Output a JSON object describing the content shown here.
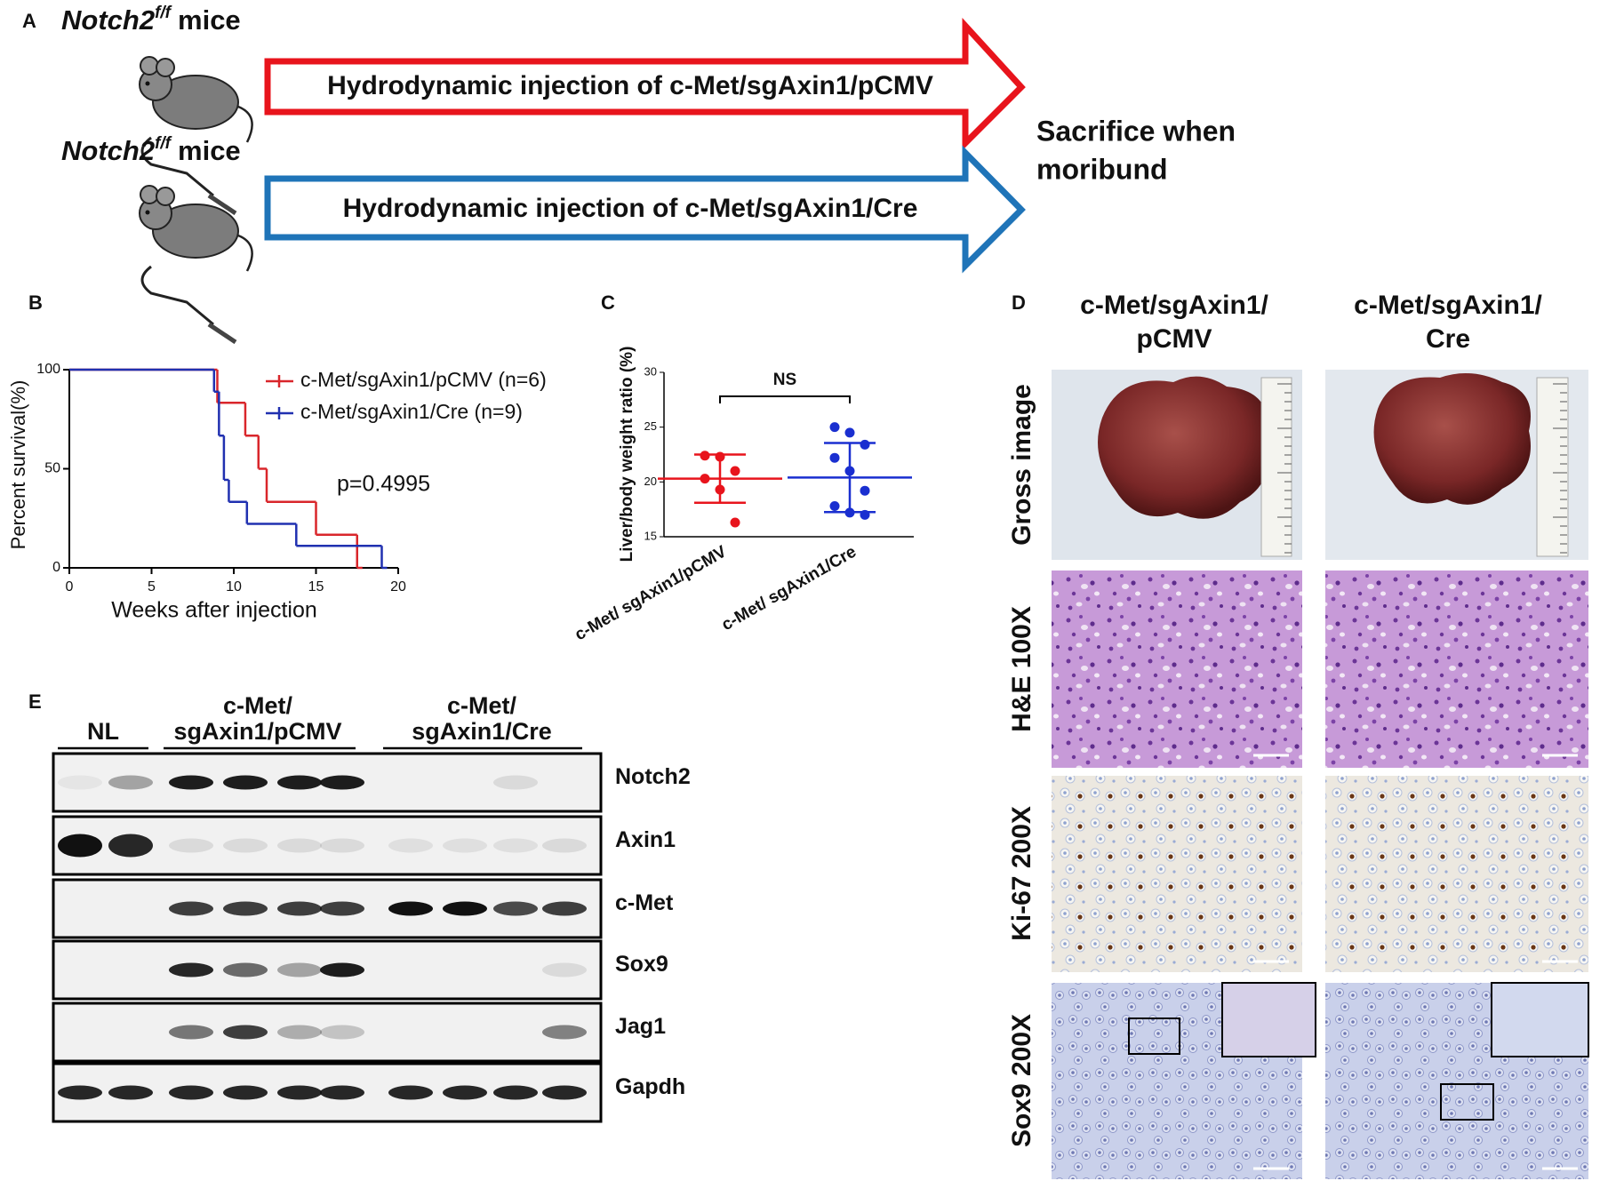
{
  "panel_a": {
    "label": "A",
    "groups": [
      {
        "gene": "Notch2",
        "superscript": "f/f",
        "suffix": "mice",
        "arrow_text": "Hydrodynamic injection of c-Met/sgAxin1/pCMV",
        "color": "#e8141c"
      },
      {
        "gene": "Notch2",
        "superscript": "f/f",
        "suffix": "mice",
        "arrow_text": "Hydrodynamic injection of c-Met/sgAxin1/Cre",
        "color": "#1f74b8"
      }
    ],
    "outcome": [
      "Sacrifice when",
      "moribund"
    ]
  },
  "chart_data": [
    {
      "panel": "B",
      "type": "step",
      "x_label": "Weeks after injection",
      "y_label": "Percent survival(%)",
      "annotation": "p=0.4995",
      "xlim": [
        0,
        20
      ],
      "xticks": [
        0,
        5,
        10,
        15,
        20
      ],
      "ylim": [
        0,
        100
      ],
      "yticks": [
        0,
        50,
        100
      ],
      "series": [
        {
          "name": "c-Met/sgAxin1/pCMV (n=6)",
          "color": "#d9262b",
          "x": [
            0,
            9,
            10.7,
            11.5,
            12,
            15,
            17.5
          ],
          "values": [
            100,
            83.3,
            66.7,
            50,
            33.3,
            16.7,
            0
          ]
        },
        {
          "name": "c-Met/sgAxin1/Cre (n=9)",
          "color": "#2030b0",
          "x": [
            0,
            8.8,
            9.1,
            9.4,
            9.7,
            10.8,
            13.8,
            19
          ],
          "values": [
            100,
            88.9,
            66.7,
            44.4,
            33.3,
            22.2,
            11.1,
            0
          ]
        }
      ]
    },
    {
      "panel": "C",
      "type": "scatter",
      "y_label": "Liver/body weight ratio (%)",
      "annotation": "NS",
      "categories": [
        "c-Met/ sgAxin1/pCMV",
        "c-Met/ sgAxin1/Cre"
      ],
      "ylim": [
        15,
        30
      ],
      "yticks": [
        15,
        20,
        25,
        30
      ],
      "groups": [
        {
          "color": "#e8141c",
          "values": [
            22.4,
            22.3,
            21.0,
            20.3,
            19.3,
            16.3
          ],
          "mean": 20.3,
          "sd": 2.2
        },
        {
          "color": "#1a2fd0",
          "values": [
            25.0,
            24.5,
            23.4,
            22.2,
            21.0,
            19.2,
            17.8,
            17.2,
            17.0
          ],
          "mean": 20.4,
          "sd": 3.15
        }
      ]
    }
  ],
  "panel_d": {
    "label": "D",
    "columns": [
      [
        "c-Met/sgAxin1/",
        "pCMV"
      ],
      [
        "c-Met/sgAxin1/",
        "Cre"
      ]
    ],
    "rows": [
      "Gross image",
      "H&E 100X",
      "Ki-67 200X",
      "Sox9 200X"
    ]
  },
  "panel_e": {
    "label": "E",
    "groups": [
      [
        "NL"
      ],
      [
        "c-Met/",
        "sgAxin1/pCMV"
      ],
      [
        "c-Met/",
        "sgAxin1/Cre"
      ]
    ],
    "proteins": [
      "Notch2",
      "Axin1",
      "c-Met",
      "Sox9",
      "Jag1",
      "Gapdh"
    ]
  }
}
